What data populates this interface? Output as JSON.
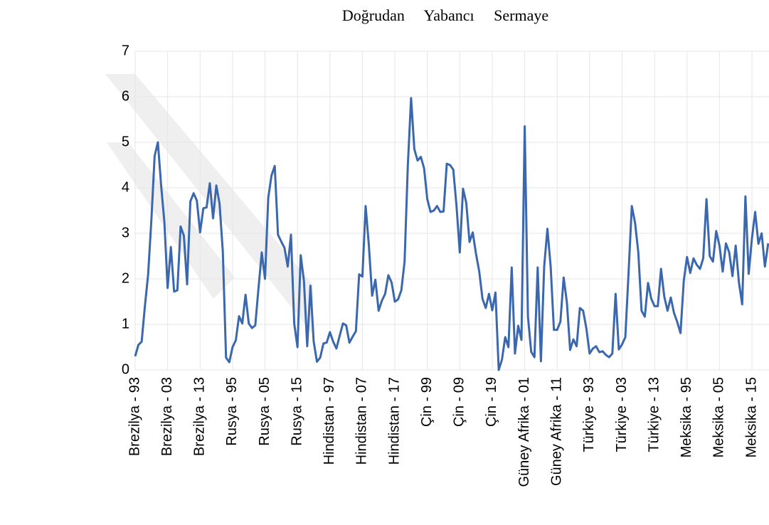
{
  "chart_data": {
    "type": "line",
    "title": "Doğrudan Yabancı Sermaye",
    "color": "#3a67ae",
    "grid": true,
    "ylim": [
      0,
      7
    ],
    "yticks": [
      0,
      1,
      2,
      3,
      4,
      5,
      6,
      7
    ],
    "categories": [
      "Brezilya - 93",
      null,
      null,
      null,
      null,
      null,
      null,
      null,
      null,
      null,
      "Brezilya - 03",
      null,
      null,
      null,
      null,
      null,
      null,
      null,
      null,
      null,
      "Brezilya - 13",
      null,
      null,
      null,
      null,
      null,
      null,
      null,
      null,
      null,
      "Rusya - 95",
      null,
      null,
      null,
      null,
      null,
      null,
      null,
      null,
      null,
      "Rusya - 05",
      null,
      null,
      null,
      null,
      null,
      null,
      null,
      null,
      null,
      "Rusya - 15",
      null,
      null,
      null,
      null,
      null,
      null,
      null,
      null,
      null,
      "Hindistan - 97",
      null,
      null,
      null,
      null,
      null,
      null,
      null,
      null,
      null,
      "Hindistan - 07",
      null,
      null,
      null,
      null,
      null,
      null,
      null,
      null,
      null,
      "Hindistan - 17",
      null,
      null,
      null,
      null,
      null,
      null,
      null,
      null,
      null,
      "Çin - 99",
      null,
      null,
      null,
      null,
      null,
      null,
      null,
      null,
      null,
      "Çin - 09",
      null,
      null,
      null,
      null,
      null,
      null,
      null,
      null,
      null,
      "Çin - 19",
      null,
      null,
      null,
      null,
      null,
      null,
      null,
      null,
      null,
      "Güney Afrika - 01",
      null,
      null,
      null,
      null,
      null,
      null,
      null,
      null,
      null,
      "Güney Afrika - 11",
      null,
      null,
      null,
      null,
      null,
      null,
      null,
      null,
      null,
      "Türkiye - 93",
      null,
      null,
      null,
      null,
      null,
      null,
      null,
      null,
      null,
      "Türkiye - 03",
      null,
      null,
      null,
      null,
      null,
      null,
      null,
      null,
      null,
      "Türkiye - 13",
      null,
      null,
      null,
      null,
      null,
      null,
      null,
      null,
      null,
      "Meksika - 95",
      null,
      null,
      null,
      null,
      null,
      null,
      null,
      null,
      null,
      "Meksika - 05",
      null,
      null,
      null,
      null,
      null,
      null,
      null,
      null,
      null,
      "Meksika - 15",
      null,
      null,
      null,
      null,
      null
    ],
    "values": [
      0.3,
      0.55,
      0.62,
      1.4,
      2.1,
      3.3,
      4.7,
      5.0,
      4.05,
      3.25,
      1.8,
      2.7,
      1.72,
      1.75,
      3.15,
      2.95,
      1.88,
      3.7,
      3.88,
      3.72,
      3.02,
      3.55,
      3.57,
      4.1,
      3.33,
      4.05,
      3.65,
      2.6,
      0.27,
      0.17,
      0.5,
      0.65,
      1.18,
      1.02,
      1.65,
      1.02,
      0.92,
      0.98,
      1.8,
      2.58,
      2.0,
      3.78,
      4.27,
      4.48,
      2.97,
      2.82,
      2.68,
      2.27,
      2.97,
      1.02,
      0.5,
      2.52,
      1.95,
      0.52,
      1.85,
      0.62,
      0.18,
      0.27,
      0.58,
      0.6,
      0.83,
      0.62,
      0.47,
      0.75,
      1.02,
      0.98,
      0.6,
      0.73,
      0.85,
      2.1,
      2.05,
      3.6,
      2.73,
      1.63,
      1.98,
      1.3,
      1.52,
      1.67,
      2.08,
      1.92,
      1.5,
      1.55,
      1.75,
      2.38,
      4.5,
      5.97,
      4.85,
      4.6,
      4.68,
      4.43,
      3.75,
      3.47,
      3.5,
      3.6,
      3.47,
      3.48,
      4.53,
      4.5,
      4.4,
      3.6,
      2.58,
      3.98,
      3.67,
      2.81,
      3.02,
      2.55,
      2.16,
      1.56,
      1.36,
      1.67,
      1.31,
      1.7,
      0,
      0.23,
      0.72,
      0.5,
      2.25,
      0.36,
      0.97,
      0.66,
      5.35,
      1.17,
      0.4,
      0.28,
      2.25,
      0.19,
      2.27,
      3.1,
      2.27,
      0.88,
      0.88,
      1.06,
      2.03,
      1.48,
      0.44,
      0.67,
      0.52,
      1.36,
      1.3,
      0.91,
      0.36,
      0.47,
      0.52,
      0.39,
      0.41,
      0.33,
      0.28,
      0.36,
      1.67,
      0.45,
      0.56,
      0.72,
      2.14,
      3.6,
      3.23,
      2.58,
      1.3,
      1.17,
      1.91,
      1.56,
      1.4,
      1.4,
      2.22,
      1.61,
      1.3,
      1.59,
      1.25,
      1.05,
      0.81,
      1.95,
      2.48,
      2.13,
      2.45,
      2.31,
      2.22,
      2.45,
      3.75,
      2.5,
      2.38,
      3.05,
      2.73,
      2.16,
      2.78,
      2.58,
      2.06,
      2.73,
      1.92,
      1.44,
      3.81,
      2.11,
      2.89,
      3.47,
      2.77,
      3.0,
      2.27,
      2.78
    ]
  }
}
